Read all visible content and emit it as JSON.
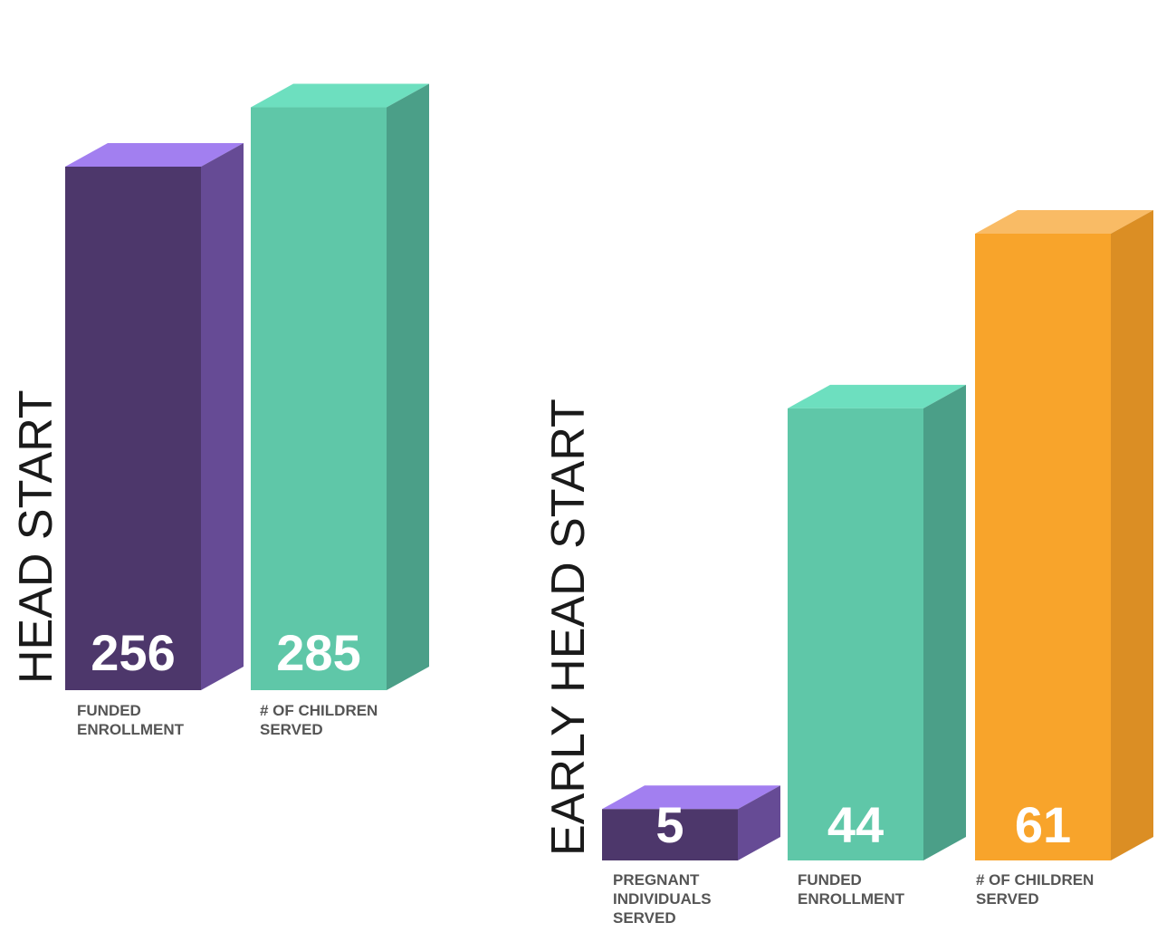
{
  "chart_data": [
    {
      "type": "bar",
      "title": "HEAD START",
      "categories": [
        "FUNDED ENROLLMENT",
        "# OF CHILDREN SERVED"
      ],
      "category_lines": [
        [
          "FUNDED",
          "ENROLLMENT"
        ],
        [
          "# OF CHILDREN",
          "SERVED"
        ]
      ],
      "values": [
        256,
        285
      ],
      "value_labels": [
        "256",
        "285"
      ],
      "colors": [
        {
          "front": "#4d376b",
          "side": "#664b95",
          "top": "#a27ff0"
        },
        {
          "front": "#5fc7a8",
          "side": "#4b9f88",
          "top": "#6ddfbf"
        }
      ]
    },
    {
      "type": "bar",
      "title": "EARLY HEAD START",
      "categories": [
        "PREGNANT INDIVIDUALS SERVED",
        "FUNDED ENROLLMENT",
        "# OF CHILDREN SERVED"
      ],
      "category_lines": [
        [
          "PREGNANT",
          "INDIVIDUALS",
          "SERVED"
        ],
        [
          "FUNDED",
          "ENROLLMENT"
        ],
        [
          "# OF CHILDREN",
          "SERVED"
        ]
      ],
      "values": [
        5,
        44,
        61
      ],
      "value_labels": [
        "5",
        "44",
        "61"
      ],
      "colors": [
        {
          "front": "#4d376b",
          "side": "#664b95",
          "top": "#a27ff0"
        },
        {
          "front": "#5fc7a8",
          "side": "#4b9f88",
          "top": "#6ddfbf"
        },
        {
          "front": "#f8a42b",
          "side": "#db8e24",
          "top": "#f9bb65"
        }
      ]
    }
  ]
}
